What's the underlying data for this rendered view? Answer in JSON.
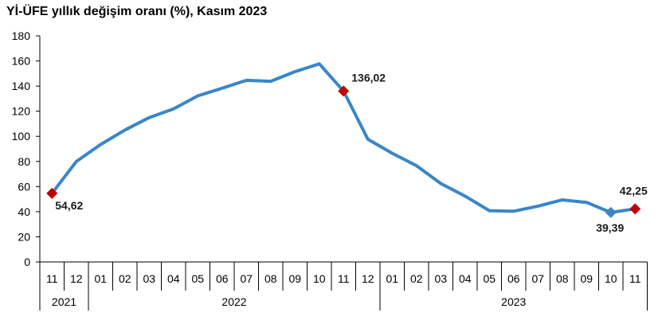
{
  "chart_data": {
    "type": "line",
    "title": "Yİ-ÜFE yıllık değişim oranı (%), Kasım 2023",
    "xlabel": "",
    "ylabel": "",
    "ylim": [
      0,
      180
    ],
    "yticks": [
      "0",
      "20",
      "40",
      "60",
      "80",
      "100",
      "120",
      "140",
      "160",
      "180"
    ],
    "grid": false,
    "months": [
      "11",
      "12",
      "01",
      "02",
      "03",
      "04",
      "05",
      "06",
      "07",
      "08",
      "09",
      "10",
      "11",
      "12",
      "01",
      "02",
      "03",
      "04",
      "05",
      "06",
      "07",
      "08",
      "09",
      "10",
      "11"
    ],
    "years": [
      {
        "label": "2021",
        "start": 0,
        "end": 1
      },
      {
        "label": "2022",
        "start": 2,
        "end": 13
      },
      {
        "label": "2023",
        "start": 14,
        "end": 24
      }
    ],
    "series": [
      {
        "color": "#3a86c8",
        "values": [
          54.62,
          79.9,
          93.5,
          105.0,
          114.9,
          121.8,
          132.2,
          138.3,
          144.6,
          143.8,
          151.5,
          157.7,
          136.02,
          97.7,
          86.5,
          76.6,
          62.4,
          52.4,
          40.8,
          40.4,
          44.4,
          49.4,
          47.4,
          39.39,
          42.25
        ]
      }
    ],
    "markers": [
      {
        "index": 0,
        "label": "54,62",
        "color": "#c00000",
        "shape": "diamond",
        "label_pos": "below-right"
      },
      {
        "index": 12,
        "label": "136,02",
        "color": "#c00000",
        "shape": "diamond",
        "label_pos": "above-right"
      },
      {
        "index": 23,
        "label": "39,39",
        "color": "#3a86c8",
        "shape": "diamond",
        "label_pos": "below"
      },
      {
        "index": 24,
        "label": "42,25",
        "color": "#c00000",
        "shape": "diamond",
        "label_pos": "above"
      }
    ]
  }
}
